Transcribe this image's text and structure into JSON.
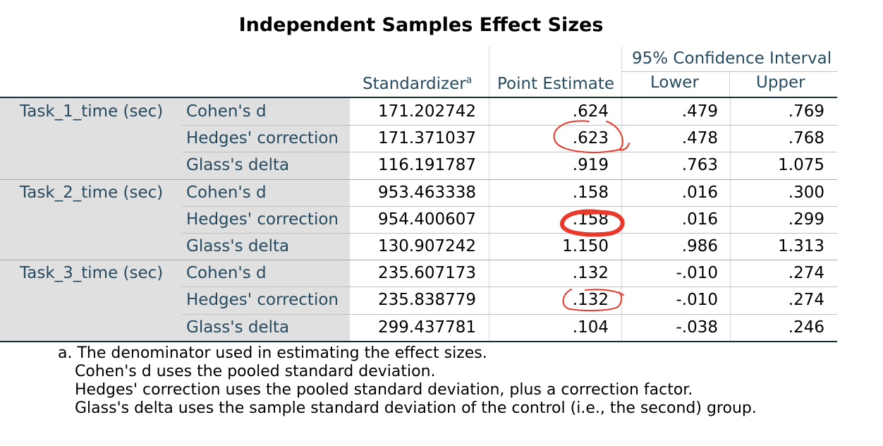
{
  "title": "Independent Samples Effect Sizes",
  "headers": {
    "standardizer": "Standardizer",
    "standardizer_sup": "a",
    "point_estimate": "Point Estimate",
    "ci": "95% Confidence Interval",
    "lower": "Lower",
    "upper": "Upper"
  },
  "groups": [
    {
      "label": "Task_1_time (sec)",
      "rows": [
        {
          "measure": "Cohen's d",
          "standardizer": "171.202742",
          "point": ".624",
          "lower": ".479",
          "upper": ".769"
        },
        {
          "measure": "Hedges' correction",
          "standardizer": "171.371037",
          "point": ".623",
          "lower": ".478",
          "upper": ".768"
        },
        {
          "measure": "Glass's delta",
          "standardizer": "116.191787",
          "point": ".919",
          "lower": ".763",
          "upper": "1.075"
        }
      ]
    },
    {
      "label": "Task_2_time (sec)",
      "rows": [
        {
          "measure": "Cohen's d",
          "standardizer": "953.463338",
          "point": ".158",
          "lower": ".016",
          "upper": ".300"
        },
        {
          "measure": "Hedges' correction",
          "standardizer": "954.400607",
          "point": ".158",
          "lower": ".016",
          "upper": ".299"
        },
        {
          "measure": "Glass's delta",
          "standardizer": "130.907242",
          "point": "1.150",
          "lower": ".986",
          "upper": "1.313"
        }
      ]
    },
    {
      "label": "Task_3_time (sec)",
      "rows": [
        {
          "measure": "Cohen's d",
          "standardizer": "235.607173",
          "point": ".132",
          "lower": "-.010",
          "upper": ".274"
        },
        {
          "measure": "Hedges' correction",
          "standardizer": "235.838779",
          "point": ".132",
          "lower": "-.010",
          "upper": ".274"
        },
        {
          "measure": "Glass's delta",
          "standardizer": "299.437781",
          "point": ".104",
          "lower": "-.038",
          "upper": ".246"
        }
      ]
    }
  ],
  "footnotes": [
    "a. The denominator used in estimating the effect sizes.",
    "Cohen's d uses the pooled standard deviation.",
    "Hedges' correction uses the pooled standard deviation, plus a correction factor.",
    "Glass's delta uses the sample standard deviation of the control (i.e., the second) group."
  ],
  "annotation_color": "#e8392b"
}
